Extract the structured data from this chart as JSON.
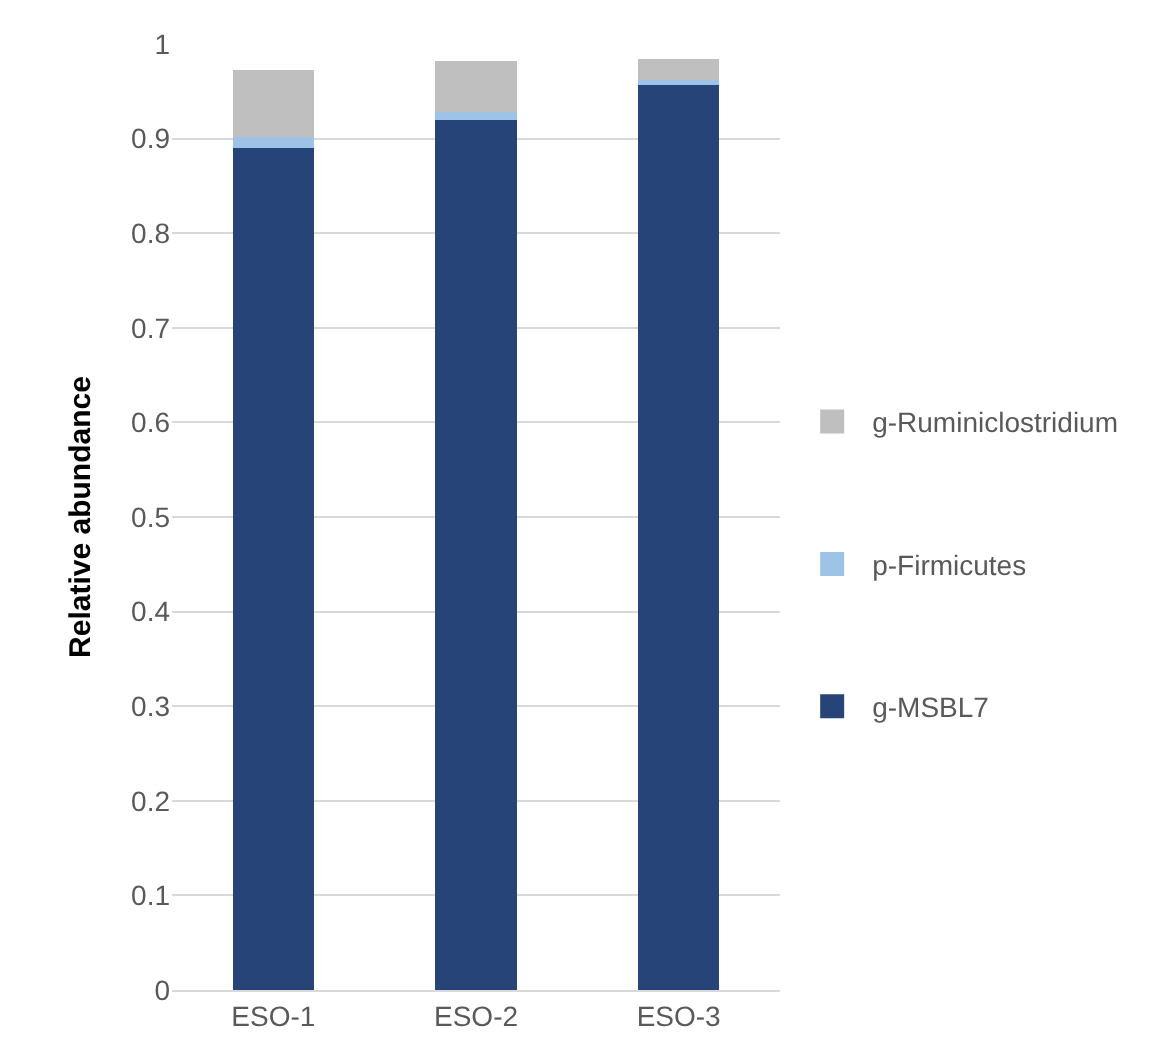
{
  "chart_data": {
    "type": "bar",
    "stacked": true,
    "ylabel": "Relative abundance",
    "categories": [
      "ESO-1",
      "ESO-2",
      "ESO-3"
    ],
    "series": [
      {
        "name": "g-MSBL7",
        "color": "#264478",
        "values": [
          0.89,
          0.92,
          0.957
        ]
      },
      {
        "name": "p-Firmicutes",
        "color": "#9dc3e6",
        "values": [
          0.012,
          0.008,
          0.005
        ]
      },
      {
        "name": "g-Ruminiclostridium",
        "color": "#bfbfbf",
        "values": [
          0.07,
          0.054,
          0.022
        ]
      }
    ],
    "ylim": [
      0,
      1
    ],
    "yticks": [
      0,
      0.1,
      0.2,
      0.3,
      0.4,
      0.5,
      0.6,
      0.7,
      0.8,
      0.9,
      1
    ],
    "grid": "y",
    "legend": "right"
  }
}
